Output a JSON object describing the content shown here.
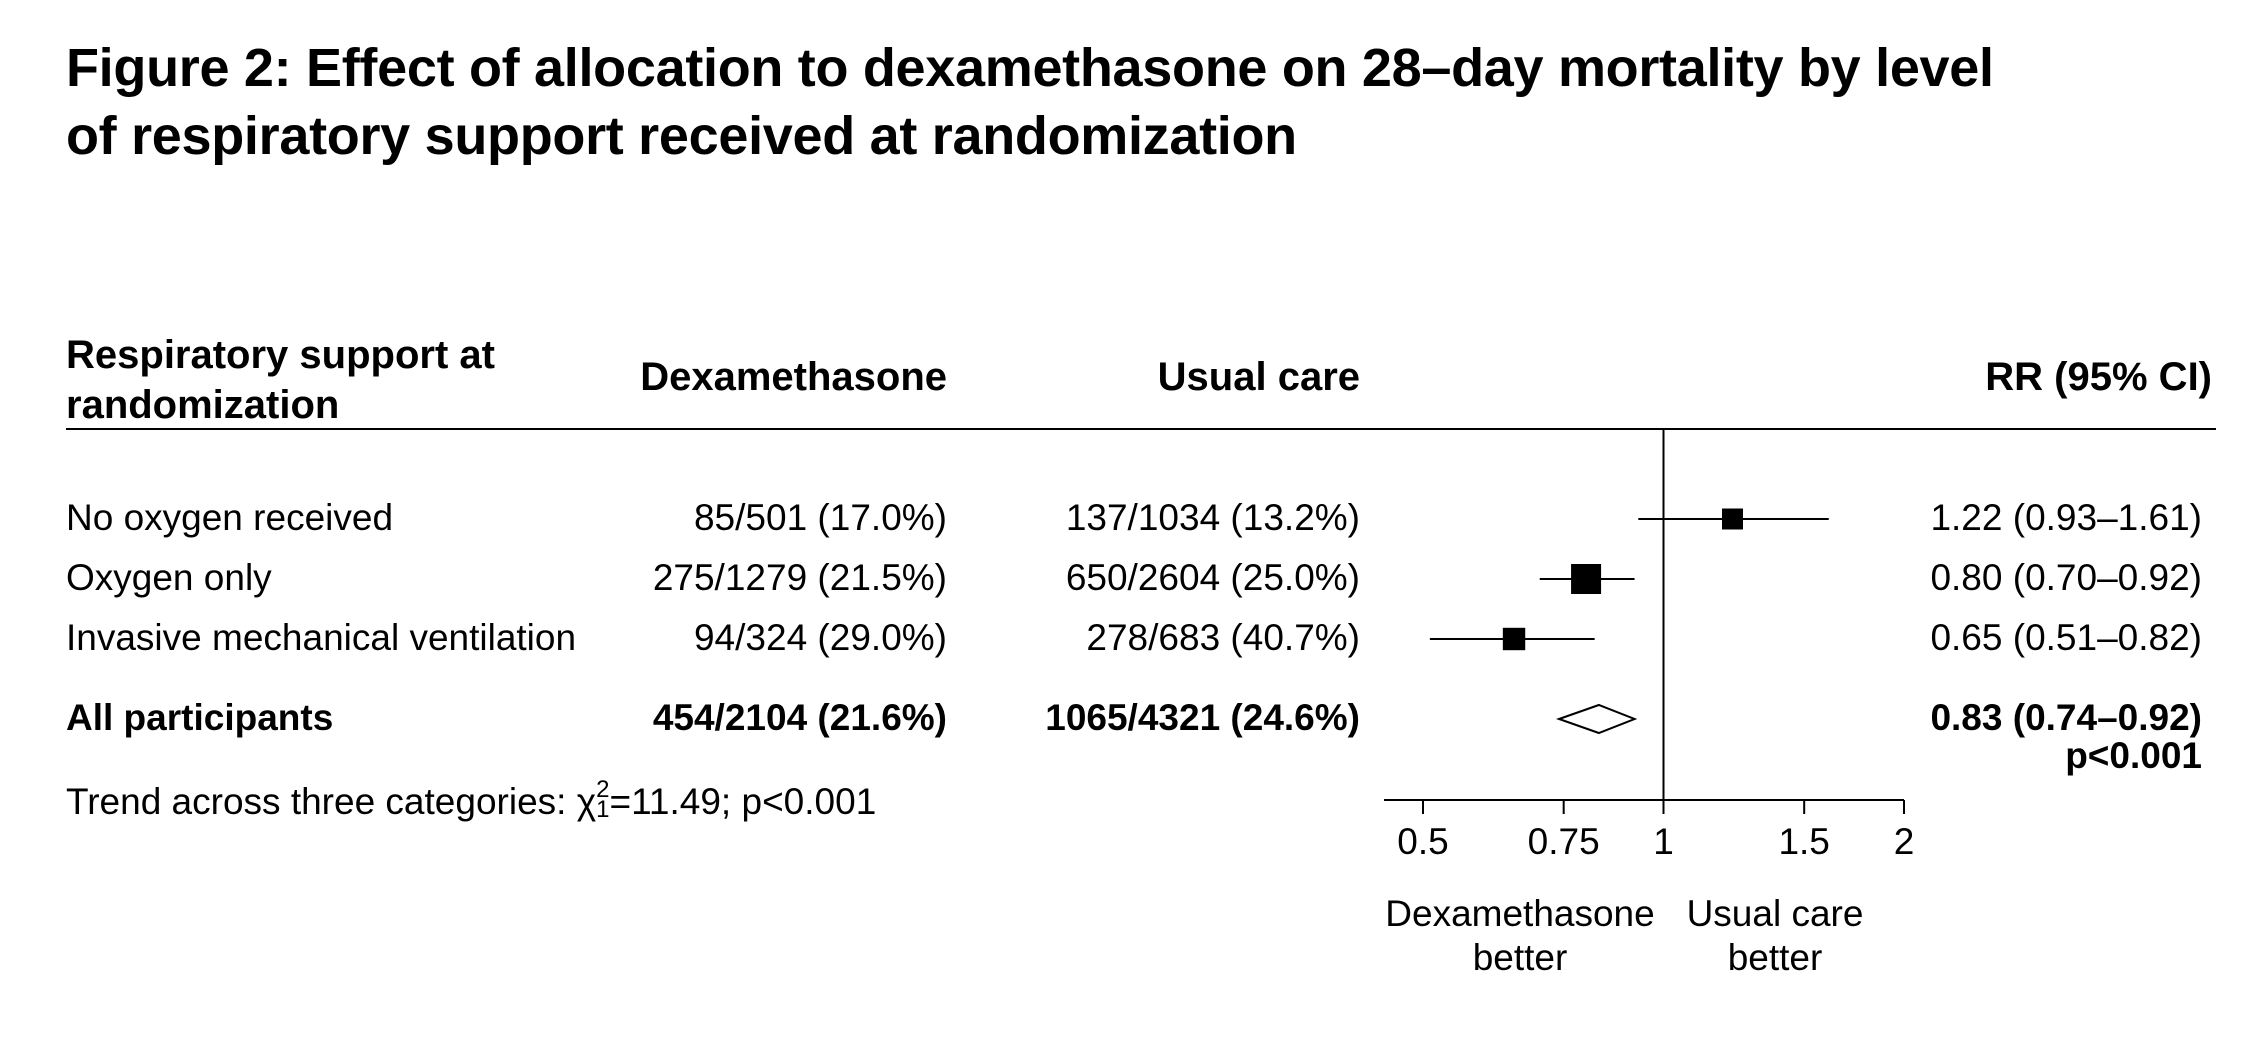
{
  "title_line1": "Figure 2: Effect of allocation to dexamethasone on 28–day mortality by level",
  "title_line2": "of respiratory support received at randomization",
  "columns": {
    "group_line1": "Respiratory support at",
    "group_line2": "randomization",
    "dexamethasone": "Dexamethasone",
    "usual_care": "Usual care",
    "rr": "RR (95% CI)"
  },
  "trend": {
    "prefix": "Trend across three categories: ",
    "chi": "χ",
    "chi_sup": "2",
    "chi_sub": "1",
    "suffix": "=11.49; p<0.001"
  },
  "chart_data": {
    "type": "forest",
    "x_scale": "log",
    "xlim": [
      0.5,
      2
    ],
    "x_ticks": [
      "0.5",
      "0.75",
      "1",
      "1.5",
      "2"
    ],
    "reference_line": 1,
    "x_direction_labels": {
      "left_line1": "Dexamethasone",
      "left_line2": "better",
      "right_line1": "Usual care",
      "right_line2": "better"
    },
    "rows": [
      {
        "label": "No oxygen received",
        "dexamethasone": "85/501 (17.0%)",
        "usual_care": "137/1034 (13.2%)",
        "rr_text": "1.22 (0.93–1.61)",
        "rr": 1.22,
        "lo": 0.93,
        "hi": 1.61,
        "weight": 0.55,
        "summary": false
      },
      {
        "label": "Oxygen only",
        "dexamethasone": "275/1279 (21.5%)",
        "usual_care": "650/2604 (25.0%)",
        "rr_text": "0.80 (0.70–0.92)",
        "rr": 0.8,
        "lo": 0.7,
        "hi": 0.92,
        "weight": 1.0,
        "summary": false
      },
      {
        "label": "Invasive mechanical ventilation",
        "dexamethasone": "94/324 (29.0%)",
        "usual_care": "278/683 (40.7%)",
        "rr_text": "0.65 (0.51–0.82)",
        "rr": 0.65,
        "lo": 0.51,
        "hi": 0.82,
        "weight": 0.62,
        "summary": false
      },
      {
        "label": "All participants",
        "dexamethasone": "454/2104 (21.6%)",
        "usual_care": "1065/4321 (24.6%)",
        "rr_text": "0.83 (0.74–0.92)",
        "rr": 0.83,
        "lo": 0.74,
        "hi": 0.92,
        "p_text": "p<0.001",
        "summary": true
      }
    ]
  }
}
